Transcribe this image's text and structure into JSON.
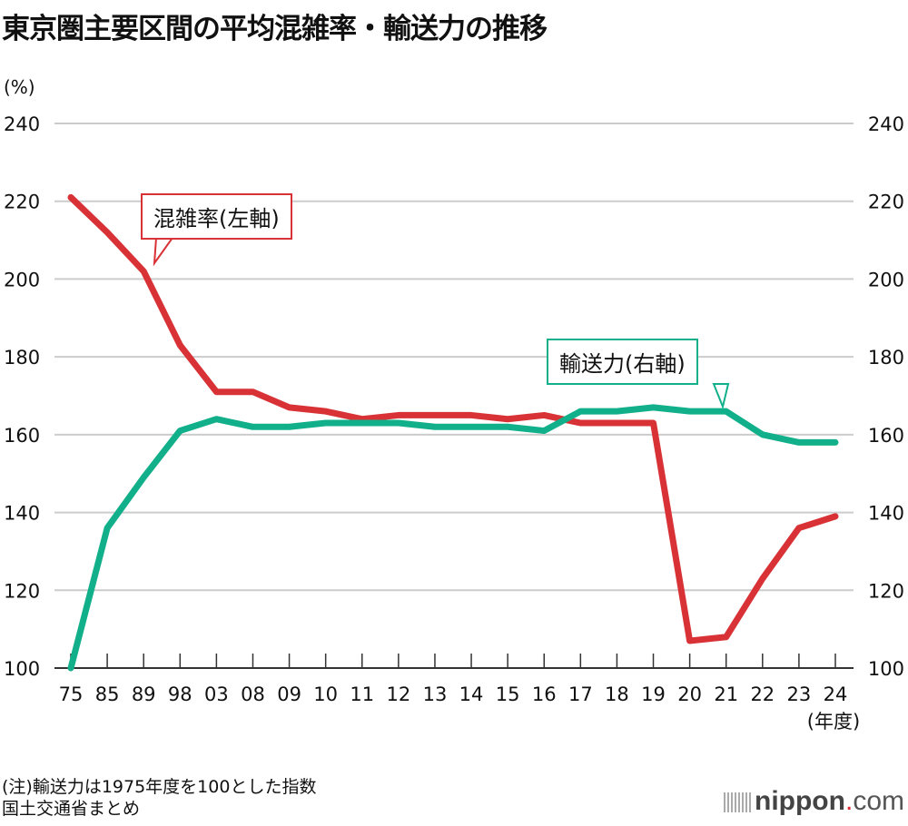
{
  "chart_data": {
    "type": "line",
    "title": "東京圏主要区間の平均混雑率・輸送力の推移",
    "ylabel": "(%)",
    "xlabel": "(年度)",
    "ylim": [
      100,
      240
    ],
    "yticks": [
      100,
      120,
      140,
      160,
      180,
      200,
      220,
      240
    ],
    "categories": [
      "75",
      "85",
      "89",
      "98",
      "03",
      "08",
      "09",
      "10",
      "11",
      "12",
      "13",
      "14",
      "15",
      "16",
      "17",
      "18",
      "19",
      "20",
      "21",
      "22",
      "23",
      "24"
    ],
    "series": [
      {
        "name": "混雑率(左軸)",
        "axis": "left",
        "color": "#d93236",
        "values": [
          221,
          212,
          202,
          183,
          171,
          171,
          167,
          166,
          164,
          165,
          165,
          165,
          164,
          165,
          163,
          163,
          163,
          107,
          108,
          123,
          136,
          139
        ]
      },
      {
        "name": "輸送力(右軸)",
        "axis": "right",
        "color": "#12b08a",
        "values": [
          100,
          136,
          149,
          161,
          164,
          162,
          162,
          163,
          163,
          163,
          162,
          162,
          162,
          161,
          166,
          166,
          167,
          166,
          166,
          160,
          158,
          158
        ]
      }
    ],
    "grid": true
  },
  "notes": [
    "(注)輸送力は1975年度を100とした指数",
    "国土交通省まとめ"
  ],
  "logo": {
    "main": "nippon",
    "dot": ".",
    "suffix": "com"
  }
}
